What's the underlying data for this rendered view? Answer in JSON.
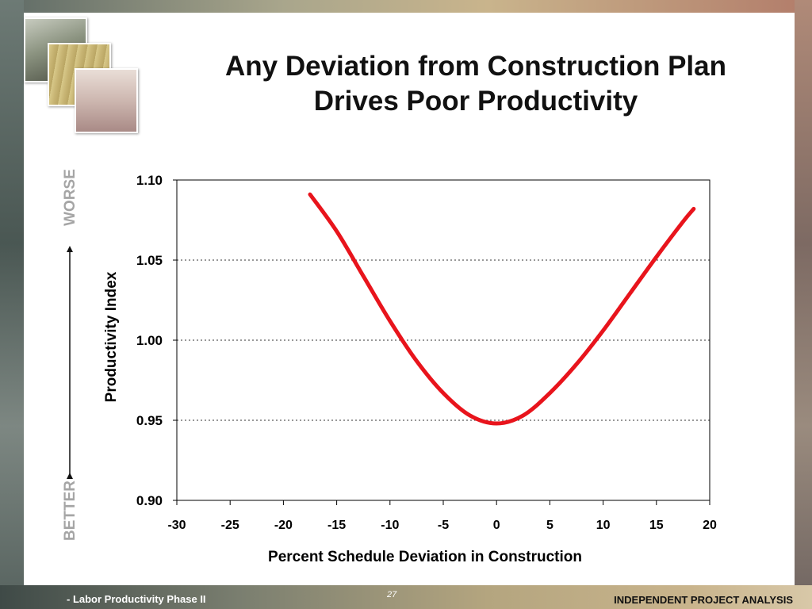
{
  "slide": {
    "title_line1": "Any Deviation from Construction Plan",
    "title_line2": "Drives Poor Productivity",
    "worse_label": "WORSE",
    "better_label": "BETTER"
  },
  "footer": {
    "left_text": "- Labor Productivity Phase II",
    "page_number": "27",
    "right_text": "INDEPENDENT PROJECT ANALYSIS"
  },
  "colors": {
    "curve": "#e8141c",
    "side_label": "#a5a5a5"
  },
  "chart_data": {
    "type": "line",
    "title": "",
    "xlabel": "Percent Schedule Deviation in Construction",
    "ylabel": "Productivity Index",
    "xlim": [
      -30,
      20
    ],
    "ylim": [
      0.9,
      1.1
    ],
    "xticks": [
      -30,
      -25,
      -20,
      -15,
      -10,
      -5,
      0,
      5,
      10,
      15,
      20
    ],
    "yticks": [
      0.9,
      0.95,
      1.0,
      1.05,
      1.1
    ],
    "ytick_labels": [
      "0.90",
      "0.95",
      "1.00",
      "1.05",
      "1.10"
    ],
    "grid": "horizontal dotted",
    "series": [
      {
        "x": [
          -17.5,
          -15,
          -12.5,
          -10,
          -7.5,
          -5,
          -2.5,
          0,
          2.5,
          5,
          7.5,
          10,
          12.5,
          15,
          17.5,
          18.5
        ],
        "values": [
          1.091,
          1.068,
          1.04,
          1.012,
          0.987,
          0.967,
          0.953,
          0.948,
          0.953,
          0.967,
          0.985,
          1.006,
          1.029,
          1.052,
          1.074,
          1.082
        ]
      }
    ]
  }
}
